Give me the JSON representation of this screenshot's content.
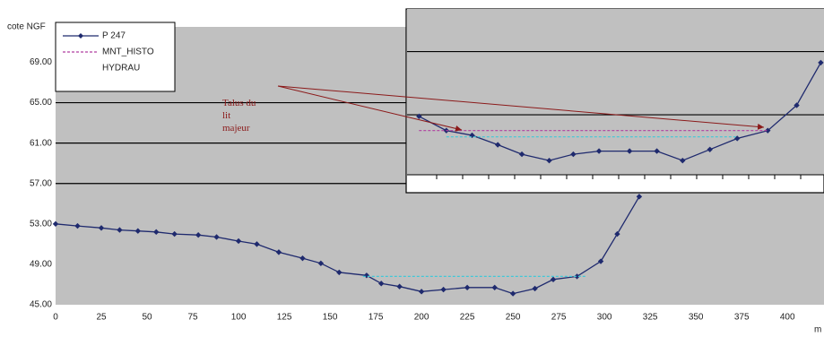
{
  "chart_data": [
    {
      "type": "line",
      "ylabel": "cote NGF",
      "xlabel": "m",
      "xlim": [
        0,
        420
      ],
      "ylim": [
        45,
        72.5
      ],
      "xticks": [
        0,
        25,
        50,
        75,
        100,
        125,
        150,
        175,
        200,
        225,
        250,
        275,
        300,
        325,
        350,
        375,
        400
      ],
      "yticks": [
        {
          "value": 45,
          "label": "45.00"
        },
        {
          "value": 49,
          "label": "49.00"
        },
        {
          "value": 53,
          "label": "53.00"
        },
        {
          "value": 57,
          "label": "57.00"
        },
        {
          "value": 61,
          "label": "61.00"
        },
        {
          "value": 65,
          "label": "65.00"
        },
        {
          "value": 69,
          "label": "69.00"
        }
      ],
      "grid_lines": [
        57,
        61,
        65
      ],
      "legend": "upper left",
      "series": [
        {
          "name": "P 247",
          "color": "#1f2a6e",
          "style": "solid",
          "x": [
            0,
            12,
            25,
            35,
            45,
            55,
            65,
            78,
            88,
            100,
            110,
            122,
            135,
            145,
            155,
            170,
            178,
            188,
            200,
            212,
            225,
            240,
            250,
            262,
            272,
            285,
            298,
            307,
            319
          ],
          "values": [
            53.0,
            52.8,
            52.6,
            52.4,
            52.3,
            52.2,
            52.0,
            51.9,
            51.7,
            51.3,
            51.0,
            50.2,
            49.6,
            49.1,
            48.2,
            47.9,
            47.1,
            46.8,
            46.3,
            46.5,
            46.7,
            46.7,
            46.1,
            46.6,
            47.5,
            47.8,
            49.3,
            52.0,
            55.7
          ]
        },
        {
          "name": "MNT_HISTO",
          "color": "#b03fa0",
          "style": "dashed",
          "x": [],
          "values": []
        },
        {
          "name": "HYDRAU",
          "color": "#40c8d8",
          "style": "dashed",
          "x": [
            168,
            290
          ],
          "values": [
            47.8,
            47.8
          ]
        }
      ]
    },
    {
      "type": "line",
      "xlim": [
        160,
        420
      ],
      "ylim": [
        57.2,
        67.7
      ],
      "grid_lines": [
        61,
        65
      ],
      "annotation": "Talus du lit majeur",
      "series": [
        {
          "name": "P 247",
          "color": "#1f2a6e",
          "style": "solid",
          "x": [
            168,
            185,
            201,
            217,
            232,
            249,
            264,
            280,
            299,
            316,
            332,
            349,
            366,
            385,
            403,
            418
          ],
          "values": [
            60.9,
            60.0,
            59.7,
            59.1,
            58.5,
            58.1,
            58.5,
            58.7,
            58.7,
            58.7,
            58.1,
            58.8,
            59.5,
            60.0,
            61.6,
            64.3
          ]
        },
        {
          "name": "MNT_HISTO",
          "color": "#b03fa0",
          "style": "dashed",
          "x": [
            168,
            385
          ],
          "values": [
            60.0,
            60.0
          ]
        },
        {
          "name": "HYDRAU",
          "color": "#40c8d8",
          "style": "dashed",
          "x": [
            185,
            366
          ],
          "values": [
            59.6,
            59.6
          ]
        }
      ]
    }
  ]
}
